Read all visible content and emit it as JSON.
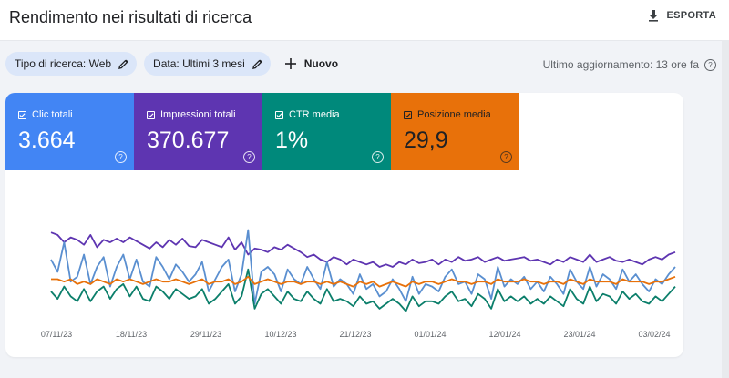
{
  "header": {
    "title": "Rendimento nei risultati di ricerca",
    "export_label": "ESPORTA",
    "export_icon": "download-icon"
  },
  "filters": {
    "search_type": "Tipo di ricerca: Web",
    "date": "Data: Ultimi 3 mesi",
    "new_label": "Nuovo"
  },
  "last_update": "Ultimo aggiornamento: 13 ore fa",
  "metrics": [
    {
      "label": "Clic totali",
      "value": "3.664",
      "color": "#4285f4",
      "checked": true
    },
    {
      "label": "Impressioni totali",
      "value": "370.677",
      "color": "#5e35b1",
      "checked": true
    },
    {
      "label": "CTR media",
      "value": "1%",
      "color": "#00897b",
      "checked": true
    },
    {
      "label": "Posizione media",
      "value": "29,9",
      "color": "#e8710a",
      "checked": true
    }
  ],
  "chart_data": {
    "type": "line",
    "x_tick_labels": [
      "07/11/23",
      "18/11/23",
      "29/11/23",
      "10/12/23",
      "21/12/23",
      "01/01/24",
      "12/01/24",
      "23/01/24",
      "03/02/24"
    ],
    "x_range": [
      "2023-11-07",
      "2024-02-07"
    ],
    "grid": false,
    "legend": "none",
    "series": [
      {
        "name": "Impressioni totali",
        "color": "#5e35b1",
        "values": [
          0.68,
          0.66,
          0.6,
          0.64,
          0.62,
          0.58,
          0.66,
          0.56,
          0.62,
          0.6,
          0.63,
          0.6,
          0.64,
          0.61,
          0.58,
          0.55,
          0.6,
          0.56,
          0.62,
          0.58,
          0.63,
          0.57,
          0.56,
          0.62,
          0.6,
          0.58,
          0.56,
          0.64,
          0.54,
          0.6,
          0.5,
          0.55,
          0.54,
          0.52,
          0.56,
          0.54,
          0.58,
          0.55,
          0.52,
          0.48,
          0.5,
          0.46,
          0.44,
          0.48,
          0.46,
          0.42,
          0.46,
          0.44,
          0.42,
          0.44,
          0.4,
          0.42,
          0.4,
          0.44,
          0.42,
          0.46,
          0.43,
          0.44,
          0.46,
          0.42,
          0.46,
          0.44,
          0.48,
          0.45,
          0.46,
          0.48,
          0.44,
          0.46,
          0.48,
          0.45,
          0.46,
          0.47,
          0.48,
          0.45,
          0.46,
          0.44,
          0.42,
          0.46,
          0.44,
          0.48,
          0.46,
          0.44,
          0.5,
          0.44,
          0.46,
          0.48,
          0.45,
          0.44,
          0.46,
          0.44,
          0.42,
          0.46,
          0.48,
          0.46,
          0.5,
          0.52
        ]
      },
      {
        "name": "Clic totali",
        "color": "#5a8fd0",
        "values": [
          0.46,
          0.36,
          0.6,
          0.28,
          0.32,
          0.5,
          0.26,
          0.4,
          0.48,
          0.24,
          0.4,
          0.5,
          0.3,
          0.46,
          0.28,
          0.24,
          0.48,
          0.4,
          0.3,
          0.42,
          0.36,
          0.28,
          0.34,
          0.44,
          0.2,
          0.3,
          0.4,
          0.46,
          0.2,
          0.34,
          0.7,
          0.1,
          0.36,
          0.4,
          0.34,
          0.2,
          0.38,
          0.3,
          0.26,
          0.4,
          0.3,
          0.22,
          0.44,
          0.24,
          0.3,
          0.26,
          0.18,
          0.34,
          0.22,
          0.26,
          0.16,
          0.2,
          0.3,
          0.22,
          0.12,
          0.32,
          0.18,
          0.26,
          0.24,
          0.2,
          0.32,
          0.38,
          0.26,
          0.28,
          0.18,
          0.34,
          0.3,
          0.14,
          0.4,
          0.24,
          0.3,
          0.26,
          0.32,
          0.22,
          0.28,
          0.2,
          0.32,
          0.26,
          0.18,
          0.38,
          0.28,
          0.22,
          0.4,
          0.24,
          0.34,
          0.3,
          0.22,
          0.38,
          0.28,
          0.34,
          0.26,
          0.2,
          0.3,
          0.26,
          0.34,
          0.4
        ]
      },
      {
        "name": "CTR media",
        "color": "#0c7f6b",
        "values": [
          0.2,
          0.14,
          0.24,
          0.16,
          0.12,
          0.22,
          0.12,
          0.2,
          0.24,
          0.14,
          0.22,
          0.26,
          0.16,
          0.24,
          0.14,
          0.12,
          0.24,
          0.2,
          0.14,
          0.22,
          0.18,
          0.14,
          0.16,
          0.22,
          0.1,
          0.14,
          0.2,
          0.26,
          0.1,
          0.16,
          0.38,
          0.06,
          0.18,
          0.22,
          0.16,
          0.1,
          0.2,
          0.14,
          0.12,
          0.2,
          0.14,
          0.1,
          0.22,
          0.12,
          0.14,
          0.12,
          0.08,
          0.16,
          0.1,
          0.12,
          0.06,
          0.1,
          0.14,
          0.1,
          0.04,
          0.16,
          0.08,
          0.12,
          0.12,
          0.1,
          0.16,
          0.2,
          0.12,
          0.14,
          0.08,
          0.18,
          0.14,
          0.06,
          0.22,
          0.12,
          0.16,
          0.12,
          0.16,
          0.1,
          0.14,
          0.1,
          0.16,
          0.12,
          0.08,
          0.22,
          0.14,
          0.1,
          0.24,
          0.12,
          0.18,
          0.16,
          0.1,
          0.2,
          0.14,
          0.18,
          0.12,
          0.1,
          0.16,
          0.12,
          0.18,
          0.24
        ]
      },
      {
        "name": "Posizione media",
        "color": "#e8710a",
        "values": [
          0.3,
          0.3,
          0.28,
          0.3,
          0.26,
          0.28,
          0.26,
          0.3,
          0.28,
          0.26,
          0.3,
          0.28,
          0.3,
          0.28,
          0.26,
          0.28,
          0.3,
          0.28,
          0.28,
          0.3,
          0.28,
          0.26,
          0.28,
          0.3,
          0.26,
          0.28,
          0.28,
          0.3,
          0.26,
          0.28,
          0.32,
          0.26,
          0.28,
          0.3,
          0.28,
          0.26,
          0.28,
          0.28,
          0.26,
          0.28,
          0.28,
          0.26,
          0.28,
          0.26,
          0.28,
          0.26,
          0.24,
          0.28,
          0.26,
          0.28,
          0.24,
          0.26,
          0.28,
          0.26,
          0.24,
          0.28,
          0.26,
          0.28,
          0.28,
          0.26,
          0.28,
          0.3,
          0.28,
          0.28,
          0.26,
          0.28,
          0.28,
          0.26,
          0.3,
          0.28,
          0.28,
          0.28,
          0.3,
          0.28,
          0.28,
          0.26,
          0.28,
          0.28,
          0.26,
          0.3,
          0.28,
          0.26,
          0.3,
          0.28,
          0.28,
          0.28,
          0.26,
          0.3,
          0.28,
          0.28,
          0.28,
          0.26,
          0.28,
          0.28,
          0.3,
          0.32
        ]
      }
    ]
  }
}
